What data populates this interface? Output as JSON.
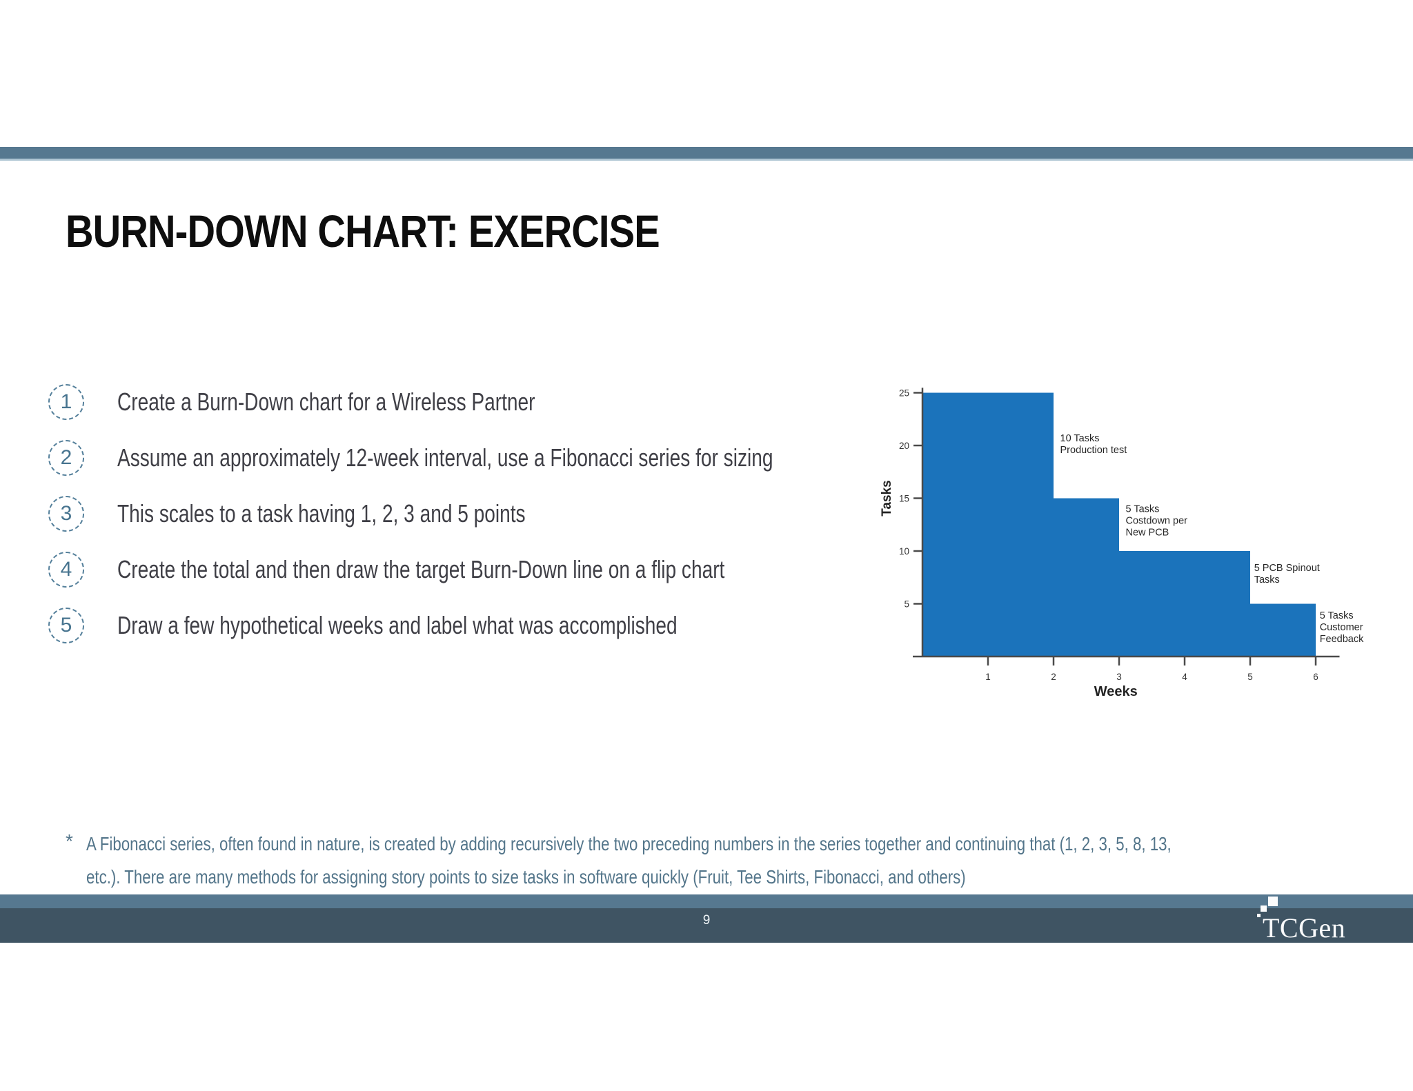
{
  "slide": {
    "title": "BURN-DOWN CHART: EXERCISE",
    "page_number": "9",
    "logo_text": "TCGen"
  },
  "steps_list": {
    "items": [
      {
        "num": "1",
        "text": "Create a Burn-Down chart for a Wireless Partner"
      },
      {
        "num": "2",
        "text": "Assume an approximately 12-week interval, use a Fibonacci series for sizing"
      },
      {
        "num": "3",
        "text": "This scales to a task having 1, 2, 3 and 5 points"
      },
      {
        "num": "4",
        "text": "Create the total and then draw the target Burn-Down line on a flip chart"
      },
      {
        "num": "5",
        "text": "Draw a few hypothetical weeks and label what was accomplished"
      }
    ]
  },
  "footnote": {
    "marker": "*",
    "line1": "A Fibonacci series, often found in nature, is created by adding recursively the two preceding numbers in the series together and continuing that (1, 2, 3, 5, 8, 13,",
    "line2": "etc.).  There are many methods for assigning story points to size tasks in software quickly (Fruit, Tee Shirts, Fibonacci, and others)"
  },
  "colors": {
    "accent_bar": "#567890",
    "accent_bar_edge": "#aec5d3",
    "footer_dark": "#3f5463",
    "chart_blue": "#1b73bb",
    "axis_color": "#4a4a4a",
    "list_accent": "#47748f",
    "footnote_text": "#53758a",
    "body_text": "#3f3f46"
  },
  "chart_data": {
    "type": "area",
    "subtype": "step-burndown",
    "title": "",
    "xlabel": "Weeks",
    "ylabel": "Tasks",
    "xlim": [
      0,
      6.3
    ],
    "ylim": [
      0,
      26
    ],
    "x_ticks": [
      1,
      2,
      3,
      4,
      5,
      6
    ],
    "y_ticks": [
      5,
      10,
      15,
      20,
      25
    ],
    "grid": false,
    "legend": false,
    "fill_color": "#1b73bb",
    "steps": [
      {
        "from_week": 0,
        "to_week": 2,
        "tasks_remaining": 25
      },
      {
        "from_week": 2,
        "to_week": 3,
        "tasks_remaining": 15
      },
      {
        "from_week": 3,
        "to_week": 5,
        "tasks_remaining": 10
      },
      {
        "from_week": 5,
        "to_week": 6,
        "tasks_remaining": 5
      }
    ],
    "annotations": [
      {
        "lines": [
          "10 Tasks",
          "Production test"
        ],
        "week": 2.1,
        "tasks": 20.4
      },
      {
        "lines": [
          "5 Tasks",
          "Costdown per",
          "New PCB"
        ],
        "week": 3.1,
        "tasks": 13.7
      },
      {
        "lines": [
          "5 PCB Spinout",
          "Tasks"
        ],
        "week": 5.06,
        "tasks": 8.1
      },
      {
        "lines": [
          "5 Tasks",
          "Customer",
          "Feedback"
        ],
        "week": 6.06,
        "tasks": 3.6
      }
    ]
  }
}
